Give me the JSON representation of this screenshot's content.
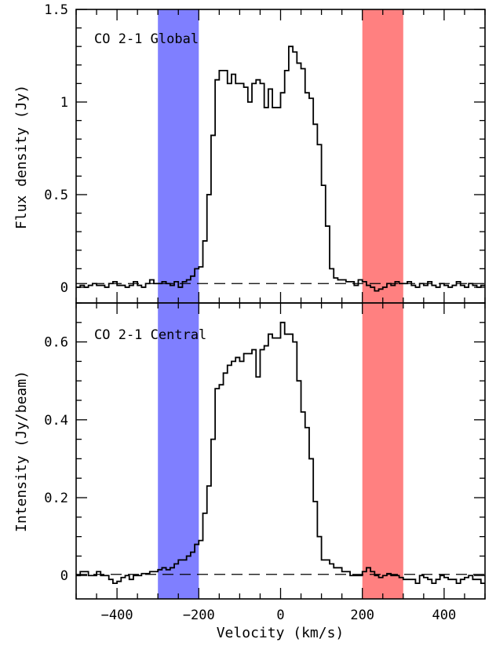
{
  "chart_data": [
    {
      "type": "line",
      "step": true,
      "label": "CO 2-1 Global",
      "ylabel": "Flux density (Jy)",
      "xlabel": "Velocity (km/s)",
      "xlim": [
        -500,
        500
      ],
      "ylim": [
        -0.085,
        1.5
      ],
      "yticks": [
        0,
        0.5,
        1,
        1.5
      ],
      "ytick_labels": [
        "0",
        "0.5",
        "1",
        "1.5"
      ],
      "xticks": [
        -400,
        -200,
        0,
        200,
        400
      ],
      "baseline": 0.02,
      "shaded_bands": [
        {
          "range": [
            -300,
            -200
          ],
          "color": "#7f7fff"
        },
        {
          "range": [
            200,
            300
          ],
          "color": "#ff8080"
        }
      ],
      "line_color": "#000000",
      "bin_width": 10,
      "x": [
        -500,
        -490,
        -480,
        -470,
        -460,
        -450,
        -440,
        -430,
        -420,
        -410,
        -400,
        -390,
        -380,
        -370,
        -360,
        -350,
        -340,
        -330,
        -320,
        -310,
        -300,
        -290,
        -280,
        -270,
        -260,
        -250,
        -240,
        -230,
        -220,
        -210,
        -200,
        -190,
        -180,
        -170,
        -160,
        -150,
        -140,
        -130,
        -120,
        -110,
        -100,
        -90,
        -80,
        -70,
        -60,
        -50,
        -40,
        -30,
        -20,
        -10,
        0,
        10,
        20,
        30,
        40,
        50,
        60,
        70,
        80,
        90,
        100,
        110,
        120,
        130,
        140,
        150,
        160,
        170,
        180,
        190,
        200,
        210,
        220,
        230,
        240,
        250,
        260,
        270,
        280,
        290,
        300,
        310,
        320,
        330,
        340,
        350,
        360,
        370,
        380,
        390,
        400,
        410,
        420,
        430,
        440,
        450,
        460,
        470,
        480,
        490
      ],
      "values": [
        0.0,
        0.01,
        0.0,
        0.01,
        0.02,
        0.01,
        0.01,
        0.0,
        0.02,
        0.03,
        0.01,
        0.01,
        0.0,
        0.01,
        0.03,
        0.01,
        0.0,
        0.02,
        0.04,
        0.02,
        0.02,
        0.03,
        0.02,
        0.01,
        0.03,
        0.0,
        0.03,
        0.04,
        0.06,
        0.1,
        0.11,
        0.25,
        0.5,
        0.82,
        1.12,
        1.17,
        1.17,
        1.1,
        1.15,
        1.1,
        1.1,
        1.08,
        1.0,
        1.1,
        1.12,
        1.1,
        0.97,
        1.07,
        0.97,
        0.97,
        1.05,
        1.17,
        1.3,
        1.27,
        1.21,
        1.18,
        1.05,
        1.02,
        0.88,
        0.77,
        0.55,
        0.33,
        0.1,
        0.05,
        0.04,
        0.04,
        0.03,
        0.03,
        0.01,
        0.04,
        0.03,
        0.01,
        0.0,
        -0.02,
        -0.01,
        0.0,
        0.02,
        0.01,
        0.03,
        0.02,
        0.02,
        0.03,
        0.01,
        0.0,
        0.02,
        0.01,
        0.03,
        0.01,
        0.0,
        0.02,
        0.01,
        0.0,
        0.01,
        0.03,
        0.01,
        0.0,
        0.02,
        0.01,
        0.0,
        0.01
      ]
    },
    {
      "type": "line",
      "step": true,
      "label": "CO 2-1 Central",
      "ylabel": "Intensity (Jy/beam)",
      "xlabel": "Velocity (km/s)",
      "xlim": [
        -500,
        500
      ],
      "ylim": [
        -0.06,
        0.7
      ],
      "yticks": [
        0,
        0.2,
        0.4,
        0.6
      ],
      "ytick_labels": [
        "0",
        "0.2",
        "0.4",
        "0.6"
      ],
      "xticks": [
        -400,
        -200,
        0,
        200,
        400
      ],
      "xtick_labels": [
        "−400",
        "−200",
        "0",
        "200",
        "400"
      ],
      "baseline": 0.003,
      "shaded_bands": [
        {
          "range": [
            -300,
            -200
          ],
          "color": "#7f7fff"
        },
        {
          "range": [
            200,
            300
          ],
          "color": "#ff8080"
        }
      ],
      "line_color": "#000000",
      "bin_width": 10,
      "x": [
        -500,
        -490,
        -480,
        -470,
        -460,
        -450,
        -440,
        -430,
        -420,
        -410,
        -400,
        -390,
        -380,
        -370,
        -360,
        -350,
        -340,
        -330,
        -320,
        -310,
        -300,
        -290,
        -280,
        -270,
        -260,
        -250,
        -240,
        -230,
        -220,
        -210,
        -200,
        -190,
        -180,
        -170,
        -160,
        -150,
        -140,
        -130,
        -120,
        -110,
        -100,
        -90,
        -80,
        -70,
        -60,
        -50,
        -40,
        -30,
        -20,
        -10,
        0,
        10,
        20,
        30,
        40,
        50,
        60,
        70,
        80,
        90,
        100,
        110,
        120,
        130,
        140,
        150,
        160,
        170,
        180,
        190,
        200,
        210,
        220,
        230,
        240,
        250,
        260,
        270,
        280,
        290,
        300,
        310,
        320,
        330,
        340,
        350,
        360,
        370,
        380,
        390,
        400,
        410,
        420,
        430,
        440,
        450,
        460,
        470,
        480,
        490
      ],
      "values": [
        0.0,
        0.01,
        0.01,
        0.0,
        0.0,
        0.01,
        0.0,
        0.0,
        -0.01,
        -0.02,
        -0.015,
        -0.005,
        0.0,
        -0.01,
        0.0,
        0.0,
        0.005,
        0.005,
        0.01,
        0.01,
        0.015,
        0.02,
        0.015,
        0.02,
        0.03,
        0.04,
        0.04,
        0.05,
        0.06,
        0.08,
        0.09,
        0.16,
        0.23,
        0.35,
        0.48,
        0.49,
        0.52,
        0.54,
        0.55,
        0.56,
        0.55,
        0.57,
        0.57,
        0.58,
        0.51,
        0.58,
        0.59,
        0.62,
        0.61,
        0.61,
        0.65,
        0.62,
        0.62,
        0.6,
        0.5,
        0.42,
        0.38,
        0.3,
        0.19,
        0.1,
        0.04,
        0.04,
        0.03,
        0.02,
        0.02,
        0.01,
        0.01,
        0.0,
        0.0,
        0.0,
        0.01,
        0.02,
        0.01,
        0.0,
        -0.005,
        0.0,
        0.005,
        0.0,
        0.0,
        -0.005,
        -0.01,
        -0.01,
        -0.01,
        -0.02,
        0.0,
        -0.005,
        -0.01,
        -0.02,
        -0.01,
        0.0,
        -0.005,
        -0.01,
        -0.01,
        -0.02,
        -0.01,
        -0.005,
        0.0,
        -0.01,
        -0.01,
        -0.02
      ],
      "label_peak_bin": {
        "x": 30,
        "value": 0.71
      }
    }
  ]
}
